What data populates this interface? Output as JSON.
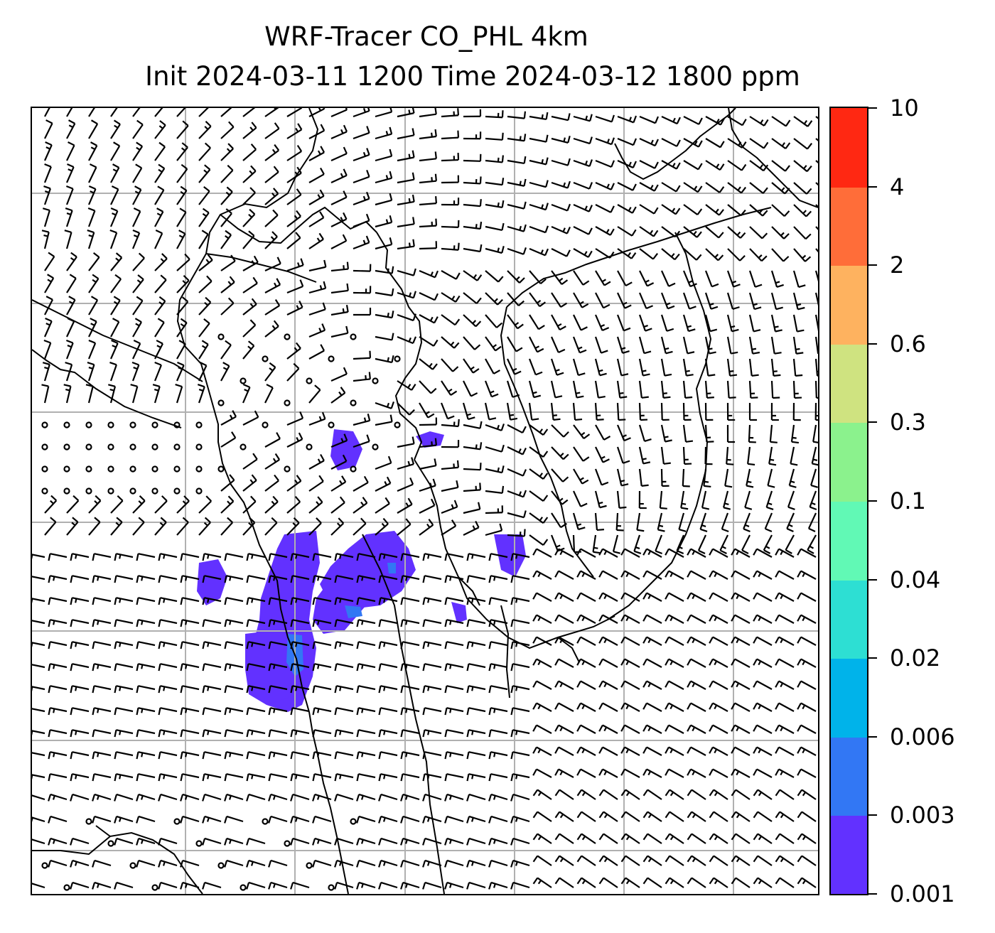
{
  "title": {
    "line1": "WRF-Tracer CO_PHL 4km",
    "line2": "Init 2024-03-11 1200 Time 2024-03-12 1800 ppm"
  },
  "colorbar": {
    "levels": [
      "0.001",
      "0.003",
      "0.006",
      "0.02",
      "0.04",
      "0.1",
      "0.3",
      "0.6",
      "2",
      "4",
      "10"
    ],
    "colors": [
      "#6231ff",
      "#3277f4",
      "#00b3ea",
      "#2ddfd3",
      "#61f9b5",
      "#8bf28d",
      "#cfe380",
      "#feb25f",
      "#ff6d39",
      "#ff2812"
    ]
  },
  "map": {
    "gridline_color": "#b0b0b0",
    "plume_colors": {
      "low": "#6231ff",
      "mid": "#3277f4",
      "high": "#00b3ea"
    },
    "wind_barbs": "shown",
    "coastlines_and_state_borders": "shown"
  }
}
